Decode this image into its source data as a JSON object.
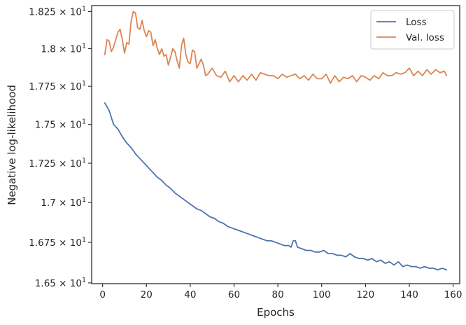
{
  "chart_data": {
    "type": "line",
    "title": "",
    "xlabel": "Epochs",
    "ylabel": "Negative log-likelihood",
    "xlim": [
      -5,
      163
    ],
    "ylim": [
      16.495,
      18.29
    ],
    "y_scale": "log",
    "grid": false,
    "legend_position": "top-right",
    "xticks": [
      0,
      20,
      40,
      60,
      80,
      100,
      120,
      140,
      160
    ],
    "xtick_labels": [
      "0",
      "20",
      "40",
      "60",
      "80",
      "100",
      "120",
      "140",
      "160"
    ],
    "yticks": [
      {
        "value": 16.5,
        "mantissa": "1.65"
      },
      {
        "value": 16.75,
        "mantissa": "1.675"
      },
      {
        "value": 17.0,
        "mantissa": "1.7"
      },
      {
        "value": 17.25,
        "mantissa": "1.725"
      },
      {
        "value": 17.5,
        "mantissa": "1.75"
      },
      {
        "value": 17.75,
        "mantissa": "1.775"
      },
      {
        "value": 18.0,
        "mantissa": "1.8"
      },
      {
        "value": 18.25,
        "mantissa": "1.825"
      }
    ],
    "ytick_times": "×",
    "ytick_base": "10",
    "ytick_exponent": "1",
    "series": [
      {
        "name": "Loss",
        "color": "#4c72b0",
        "x": [
          1,
          3,
          5,
          7,
          9,
          11,
          13,
          15,
          17,
          19,
          21,
          23,
          25,
          27,
          29,
          31,
          33,
          35,
          37,
          39,
          41,
          43,
          45,
          47,
          49,
          51,
          53,
          55,
          57,
          59,
          61,
          63,
          65,
          67,
          69,
          71,
          73,
          75,
          77,
          79,
          81,
          83,
          85,
          86,
          87,
          88,
          89,
          91,
          93,
          95,
          97,
          99,
          101,
          103,
          105,
          107,
          109,
          111,
          113,
          115,
          117,
          119,
          121,
          123,
          125,
          127,
          129,
          131,
          133,
          135,
          137,
          139,
          141,
          143,
          145,
          147,
          149,
          151,
          153,
          155,
          157
        ],
        "values": [
          17.64,
          17.59,
          17.5,
          17.47,
          17.42,
          17.38,
          17.35,
          17.31,
          17.28,
          17.25,
          17.22,
          17.19,
          17.16,
          17.14,
          17.11,
          17.09,
          17.06,
          17.04,
          17.02,
          17.0,
          16.98,
          16.96,
          16.95,
          16.93,
          16.91,
          16.9,
          16.88,
          16.87,
          16.85,
          16.84,
          16.83,
          16.82,
          16.81,
          16.8,
          16.79,
          16.78,
          16.77,
          16.76,
          16.76,
          16.75,
          16.74,
          16.73,
          16.73,
          16.72,
          16.76,
          16.76,
          16.72,
          16.71,
          16.7,
          16.7,
          16.69,
          16.69,
          16.7,
          16.68,
          16.68,
          16.67,
          16.67,
          16.66,
          16.68,
          16.66,
          16.65,
          16.65,
          16.64,
          16.65,
          16.63,
          16.64,
          16.62,
          16.63,
          16.61,
          16.63,
          16.6,
          16.61,
          16.6,
          16.6,
          16.59,
          16.6,
          16.59,
          16.59,
          16.58,
          16.59,
          16.58
        ]
      },
      {
        "name": "Val. loss",
        "color": "#dd8452",
        "x": [
          1,
          2,
          3,
          4,
          5,
          6,
          7,
          8,
          9,
          10,
          11,
          12,
          13,
          14,
          15,
          16,
          17,
          18,
          19,
          20,
          21,
          22,
          23,
          24,
          25,
          26,
          27,
          28,
          29,
          30,
          31,
          32,
          33,
          34,
          35,
          36,
          37,
          38,
          39,
          40,
          41,
          42,
          43,
          44,
          45,
          46,
          47,
          48,
          49,
          50,
          52,
          54,
          56,
          58,
          60,
          62,
          64,
          66,
          68,
          70,
          72,
          74,
          76,
          78,
          80,
          82,
          84,
          86,
          88,
          90,
          92,
          94,
          96,
          98,
          100,
          102,
          104,
          106,
          108,
          110,
          112,
          114,
          116,
          118,
          120,
          122,
          124,
          126,
          128,
          130,
          132,
          134,
          136,
          138,
          140,
          142,
          144,
          146,
          148,
          150,
          152,
          154,
          156,
          157
        ],
        "values": [
          17.96,
          18.06,
          18.05,
          17.98,
          18.01,
          18.06,
          18.11,
          18.13,
          18.06,
          17.97,
          18.04,
          18.03,
          18.18,
          18.25,
          18.24,
          18.14,
          18.13,
          18.19,
          18.12,
          18.08,
          18.12,
          18.11,
          18.02,
          18.06,
          18.0,
          17.96,
          18.0,
          17.95,
          17.96,
          17.89,
          17.94,
          18.0,
          17.98,
          17.92,
          17.87,
          18.02,
          18.07,
          17.96,
          17.91,
          17.9,
          17.99,
          17.98,
          17.87,
          17.9,
          17.93,
          17.89,
          17.82,
          17.83,
          17.85,
          17.87,
          17.82,
          17.81,
          17.85,
          17.78,
          17.82,
          17.78,
          17.82,
          17.79,
          17.83,
          17.79,
          17.84,
          17.83,
          17.82,
          17.82,
          17.8,
          17.83,
          17.81,
          17.82,
          17.83,
          17.8,
          17.82,
          17.79,
          17.83,
          17.8,
          17.8,
          17.83,
          17.77,
          17.82,
          17.78,
          17.81,
          17.8,
          17.82,
          17.78,
          17.82,
          17.81,
          17.79,
          17.82,
          17.8,
          17.84,
          17.82,
          17.82,
          17.84,
          17.83,
          17.84,
          17.87,
          17.82,
          17.85,
          17.82,
          17.86,
          17.83,
          17.86,
          17.84,
          17.85,
          17.82
        ]
      }
    ]
  }
}
